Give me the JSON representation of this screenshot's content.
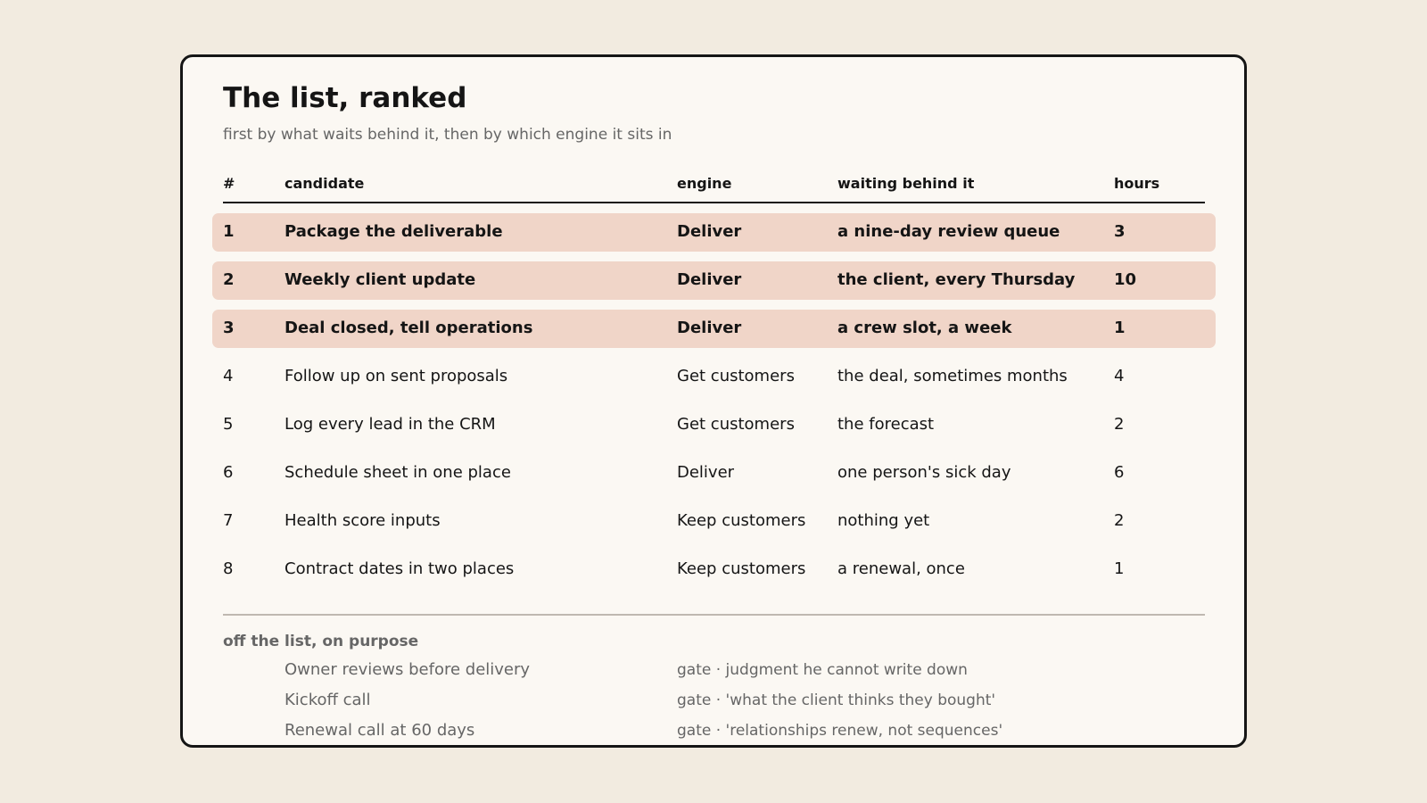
{
  "title": "The list, ranked",
  "subtitle": "first by what waits behind it, then by which engine it sits in",
  "columns": {
    "num": "#",
    "candidate": "candidate",
    "engine": "engine",
    "waiting": "waiting behind it",
    "hours": "hours"
  },
  "highlight_color": "#f0d5c8",
  "rows": [
    {
      "num": "1",
      "candidate": "Package the deliverable",
      "engine": "Deliver",
      "waiting": "a nine-day review queue",
      "hours": "3",
      "highlighted": true
    },
    {
      "num": "2",
      "candidate": "Weekly client update",
      "engine": "Deliver",
      "waiting": "the client, every Thursday",
      "hours": "10",
      "highlighted": true
    },
    {
      "num": "3",
      "candidate": "Deal closed, tell operations",
      "engine": "Deliver",
      "waiting": "a crew slot, a week",
      "hours": "1",
      "highlighted": true
    },
    {
      "num": "4",
      "candidate": "Follow up on sent proposals",
      "engine": "Get customers",
      "waiting": "the deal, sometimes months",
      "hours": "4",
      "highlighted": false
    },
    {
      "num": "5",
      "candidate": "Log every lead in the CRM",
      "engine": "Get customers",
      "waiting": "the forecast",
      "hours": "2",
      "highlighted": false
    },
    {
      "num": "6",
      "candidate": "Schedule sheet in one place",
      "engine": "Deliver",
      "waiting": "one person's sick day",
      "hours": "6",
      "highlighted": false
    },
    {
      "num": "7",
      "candidate": "Health score inputs",
      "engine": "Keep customers",
      "waiting": "nothing yet",
      "hours": "2",
      "highlighted": false
    },
    {
      "num": "8",
      "candidate": "Contract dates in two places",
      "engine": "Keep customers",
      "waiting": "a renewal, once",
      "hours": "1",
      "highlighted": false
    }
  ],
  "off_list": {
    "heading": "off the list, on purpose",
    "items": [
      {
        "name": "Owner reviews before delivery",
        "reason": "gate · judgment he cannot write down"
      },
      {
        "name": "Kickoff call",
        "reason": "gate · 'what the client thinks they bought'"
      },
      {
        "name": "Renewal call at 60 days",
        "reason": "gate · 'relationships renew, not sequences'"
      }
    ]
  }
}
